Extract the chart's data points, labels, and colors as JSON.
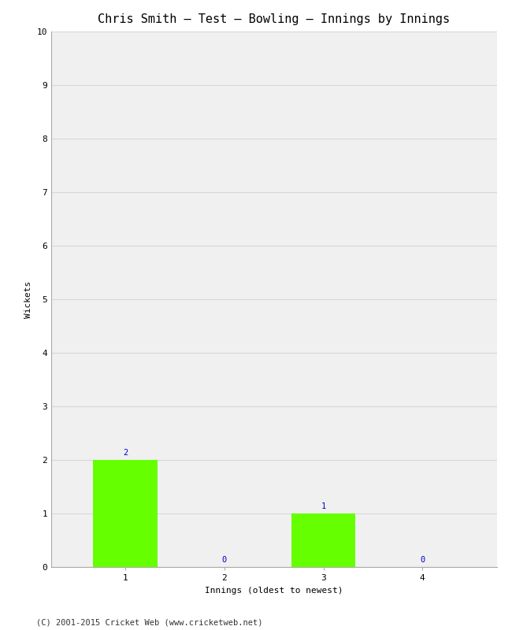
{
  "title": "Chris Smith – Test – Bowling – Innings by Innings",
  "xlabel": "Innings (oldest to newest)",
  "ylabel": "Wickets",
  "categories": [
    "1",
    "2",
    "3",
    "4"
  ],
  "values": [
    2,
    0,
    1,
    0
  ],
  "bar_color": "#66ff00",
  "bar_edge_color": "#66ff00",
  "ylim": [
    0,
    10
  ],
  "yticks": [
    0,
    1,
    2,
    3,
    4,
    5,
    6,
    7,
    8,
    9,
    10
  ],
  "annotation_color": "#0000cc",
  "annotation_fontsize": 7.5,
  "background_color": "#ffffff",
  "plot_bg_color": "#f0f0f0",
  "grid_color": "#d8d8d8",
  "title_fontsize": 11,
  "axis_label_fontsize": 8,
  "tick_fontsize": 8,
  "footer": "(C) 2001-2015 Cricket Web (www.cricketweb.net)",
  "footer_fontsize": 7.5,
  "bar_width": 0.65
}
